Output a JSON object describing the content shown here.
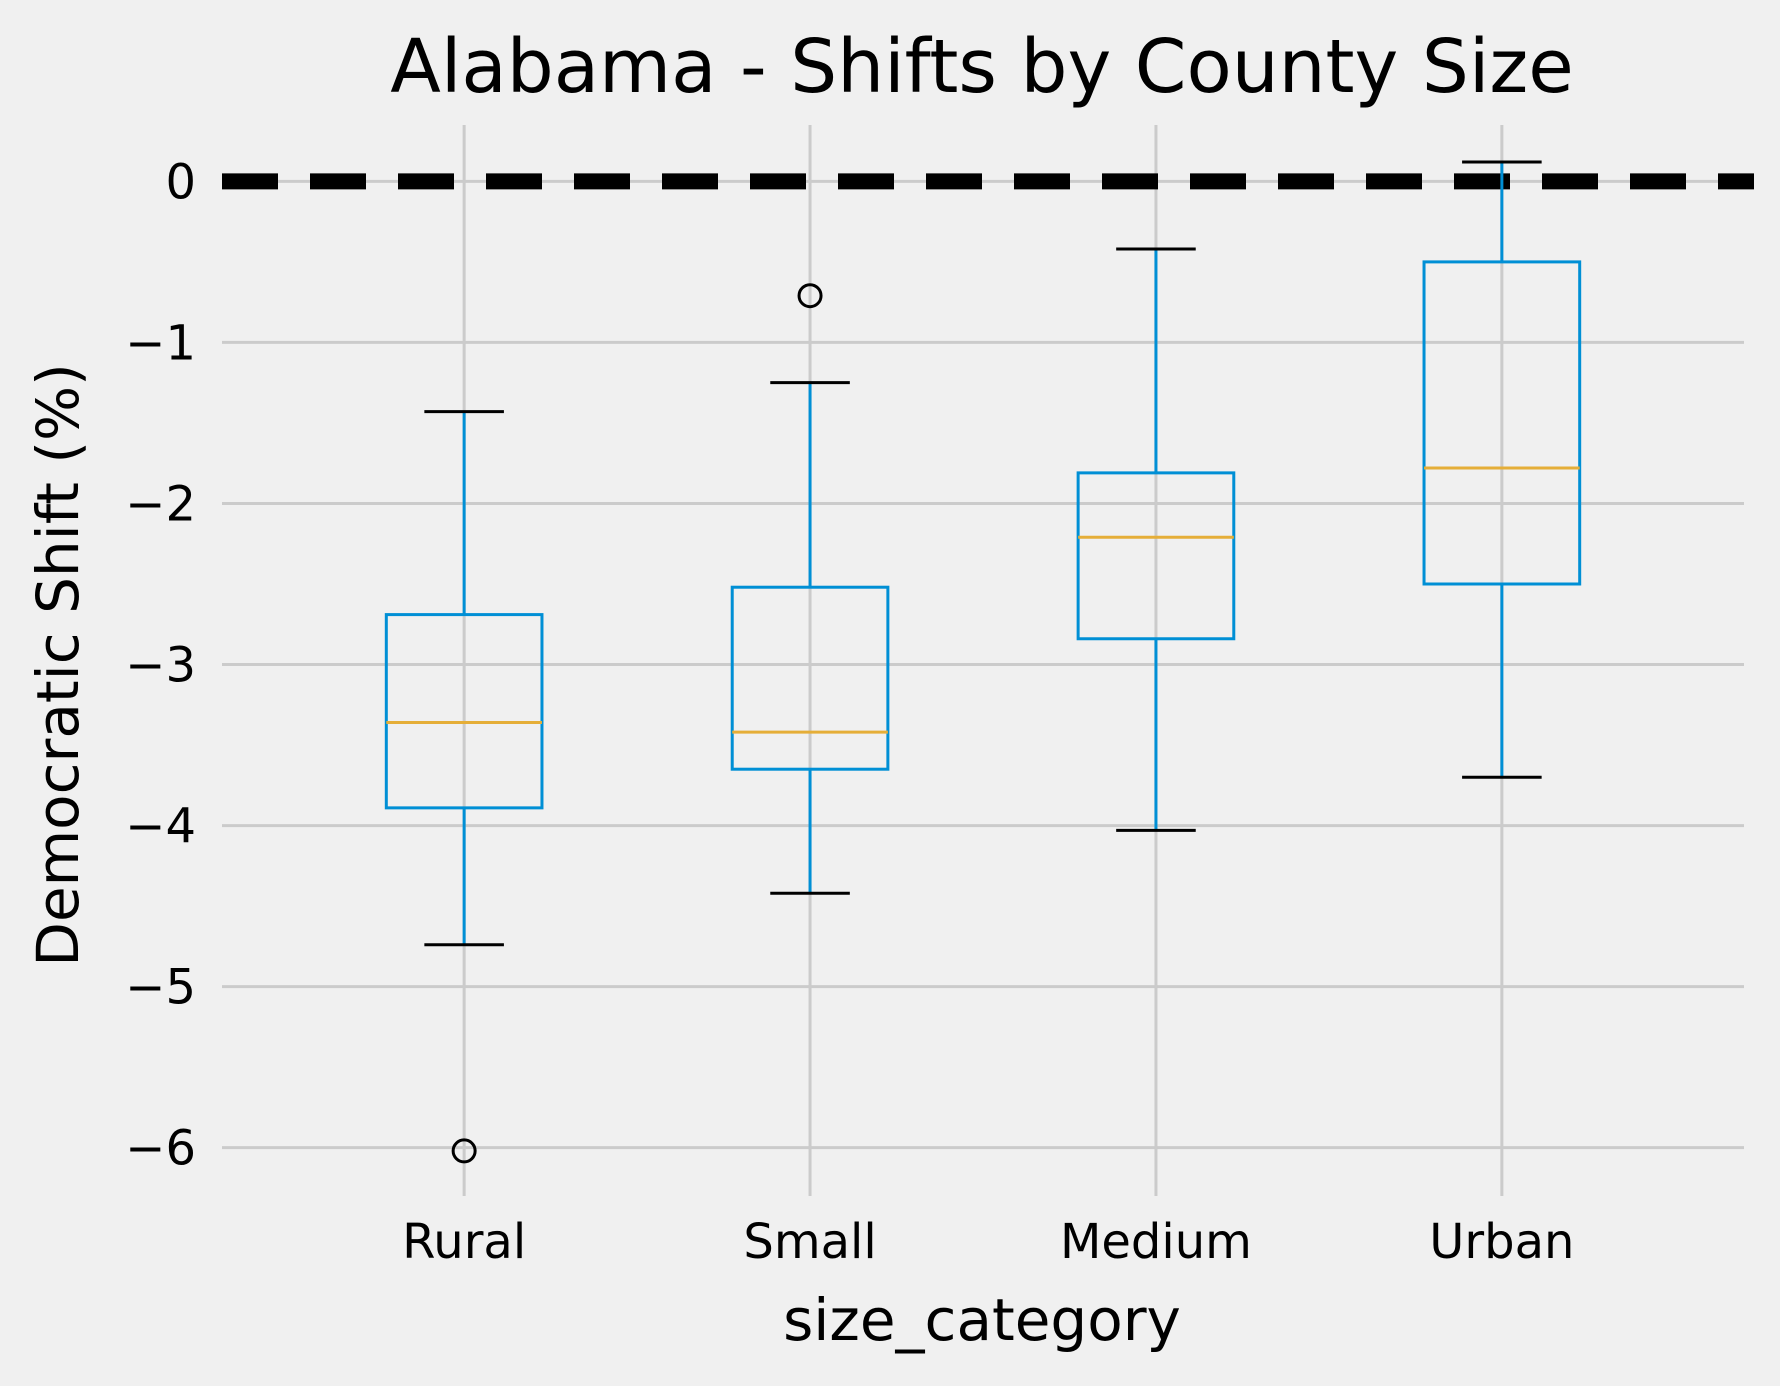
{
  "chart_data": {
    "type": "box",
    "title": "Alabama - Shifts by County Size",
    "xlabel": "size_category",
    "ylabel": "Democratic Shift (%)",
    "ylim": [
      -6.3,
      0.35
    ],
    "yticks": [
      0,
      -1,
      -2,
      -3,
      -4,
      -5,
      -6
    ],
    "ytick_labels": [
      "0",
      "−1",
      "−2",
      "−3",
      "−4",
      "−5",
      "−6"
    ],
    "grid": true,
    "reference_line": {
      "y": 0,
      "style": "dashed",
      "color": "#000000"
    },
    "colors": {
      "box": "#008fd5",
      "median": "#e5ae38",
      "whisker": "#008fd5",
      "cap": "#000000",
      "grid": "#cbcbcb",
      "background": "#f0f0f0"
    },
    "categories": [
      "Rural",
      "Small",
      "Medium",
      "Urban"
    ],
    "boxes": [
      {
        "name": "Rural",
        "whisker_low": -4.74,
        "q1": -3.89,
        "median": -3.36,
        "q3": -2.69,
        "whisker_high": -1.43,
        "outliers": [
          -6.02
        ]
      },
      {
        "name": "Small",
        "whisker_low": -4.42,
        "q1": -3.65,
        "median": -3.42,
        "q3": -2.52,
        "whisker_high": -1.25,
        "outliers": [
          -0.71
        ]
      },
      {
        "name": "Medium",
        "whisker_low": -4.03,
        "q1": -2.84,
        "median": -2.21,
        "q3": -1.81,
        "whisker_high": -0.42,
        "outliers": []
      },
      {
        "name": "Urban",
        "whisker_low": -3.7,
        "q1": -2.5,
        "median": -1.78,
        "q3": -0.5,
        "whisker_high": 0.12,
        "outliers": []
      }
    ]
  }
}
